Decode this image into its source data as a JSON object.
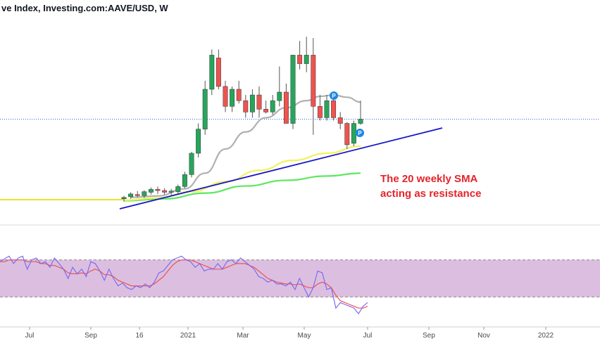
{
  "header": {
    "title": "ve Index, Investing.com:AAVE/USD, W"
  },
  "annotation": {
    "line1": "The 20 weekly SMA",
    "line2": "acting as resistance"
  },
  "colors": {
    "up": "#26a65b",
    "down": "#ef5350",
    "trendline": "#1515c8",
    "sma20": "#b0b0b0",
    "sma50": "#f2f25a",
    "sma100": "#5ce85c",
    "price_line": "#2962ff",
    "rsi": "#7b6cf0",
    "rsi_ma": "#ef5350",
    "rsi_band": "#dcbfe0",
    "annotation": "#e5232a",
    "badge": "#1e88e5"
  },
  "badges": [
    {
      "label": "P"
    },
    {
      "label": "P"
    }
  ],
  "chart_data": [
    {
      "type": "candlestick",
      "title": "ve Index, Investing.com:AAVE/USD, W",
      "x_ticks": [
        "Jul",
        "Sep",
        "16",
        "2021",
        "Mar",
        "May",
        "Jul",
        "Sep",
        "Nov",
        "2022"
      ],
      "candles_start_bar": 0,
      "candles": [
        {
          "o": 55,
          "h": 65,
          "l": 45,
          "c": 60
        },
        {
          "o": 62,
          "h": 78,
          "l": 55,
          "c": 72
        },
        {
          "o": 70,
          "h": 82,
          "l": 60,
          "c": 66
        },
        {
          "o": 66,
          "h": 85,
          "l": 58,
          "c": 80
        },
        {
          "o": 78,
          "h": 95,
          "l": 70,
          "c": 88
        },
        {
          "o": 88,
          "h": 98,
          "l": 72,
          "c": 84
        },
        {
          "o": 84,
          "h": 92,
          "l": 70,
          "c": 78
        },
        {
          "o": 78,
          "h": 90,
          "l": 68,
          "c": 82
        },
        {
          "o": 80,
          "h": 105,
          "l": 72,
          "c": 98
        },
        {
          "o": 98,
          "h": 150,
          "l": 92,
          "c": 140
        },
        {
          "o": 140,
          "h": 220,
          "l": 130,
          "c": 215
        },
        {
          "o": 215,
          "h": 320,
          "l": 200,
          "c": 300
        },
        {
          "o": 300,
          "h": 470,
          "l": 280,
          "c": 440
        },
        {
          "o": 440,
          "h": 580,
          "l": 420,
          "c": 560
        },
        {
          "o": 550,
          "h": 580,
          "l": 440,
          "c": 450
        },
        {
          "o": 450,
          "h": 470,
          "l": 360,
          "c": 380
        },
        {
          "o": 380,
          "h": 450,
          "l": 360,
          "c": 440
        },
        {
          "o": 440,
          "h": 470,
          "l": 390,
          "c": 400
        },
        {
          "o": 400,
          "h": 420,
          "l": 340,
          "c": 360
        },
        {
          "o": 360,
          "h": 440,
          "l": 340,
          "c": 420
        },
        {
          "o": 420,
          "h": 450,
          "l": 340,
          "c": 370
        },
        {
          "o": 370,
          "h": 400,
          "l": 355,
          "c": 360
        },
        {
          "o": 360,
          "h": 420,
          "l": 350,
          "c": 400
        },
        {
          "o": 400,
          "h": 520,
          "l": 380,
          "c": 430
        },
        {
          "o": 430,
          "h": 460,
          "l": 320,
          "c": 320
        },
        {
          "o": 320,
          "h": 560,
          "l": 300,
          "c": 560
        },
        {
          "o": 560,
          "h": 610,
          "l": 510,
          "c": 530
        },
        {
          "o": 530,
          "h": 625,
          "l": 500,
          "c": 560
        },
        {
          "o": 560,
          "h": 620,
          "l": 280,
          "c": 380
        },
        {
          "o": 380,
          "h": 420,
          "l": 330,
          "c": 340
        },
        {
          "o": 340,
          "h": 420,
          "l": 330,
          "c": 400
        },
        {
          "o": 400,
          "h": 420,
          "l": 330,
          "c": 340
        },
        {
          "o": 340,
          "h": 360,
          "l": 300,
          "c": 320
        },
        {
          "o": 320,
          "h": 325,
          "l": 230,
          "c": 245
        },
        {
          "o": 250,
          "h": 330,
          "l": 240,
          "c": 320
        },
        {
          "o": 320,
          "h": 400,
          "l": 315,
          "c": 335
        }
      ],
      "sma20": [
        [
          1,
          60
        ],
        [
          5,
          65
        ],
        [
          9,
          90
        ],
        [
          12,
          145
        ],
        [
          15,
          230
        ],
        [
          18,
          290
        ],
        [
          21,
          340
        ],
        [
          24,
          375
        ],
        [
          27,
          400
        ],
        [
          29,
          415
        ],
        [
          31,
          420
        ],
        [
          33,
          412
        ],
        [
          35,
          395
        ]
      ],
      "sma50": [
        [
          0,
          50
        ],
        [
          5,
          58
        ],
        [
          10,
          80
        ],
        [
          15,
          115
        ],
        [
          20,
          155
        ],
        [
          25,
          190
        ],
        [
          30,
          215
        ],
        [
          35,
          240
        ]
      ],
      "sma100": [
        [
          0,
          48
        ],
        [
          6,
          55
        ],
        [
          12,
          75
        ],
        [
          18,
          100
        ],
        [
          24,
          120
        ],
        [
          30,
          135
        ],
        [
          35,
          145
        ]
      ],
      "flat_ma": [
        [
          -20,
          52
        ],
        [
          0,
          52
        ]
      ],
      "trendline": [
        [
          0,
          60
        ],
        [
          45,
          410
        ]
      ],
      "current_price": 335,
      "y_range": [
        0,
        650
      ]
    },
    {
      "type": "line",
      "title": "RSI",
      "band": [
        30,
        70
      ],
      "y_range": [
        0,
        100
      ],
      "rsi": [
        68,
        71,
        74,
        66,
        72,
        74,
        60,
        70,
        72,
        66,
        68,
        62,
        72,
        66,
        60,
        50,
        62,
        55,
        60,
        52,
        68,
        66,
        58,
        48,
        60,
        50,
        42,
        45,
        40,
        38,
        42,
        40,
        44,
        40,
        46,
        56,
        58,
        64,
        70,
        72,
        74,
        70,
        68,
        62,
        66,
        58,
        60,
        60,
        66,
        60,
        68,
        70,
        66,
        72,
        68,
        64,
        60,
        52,
        50,
        46,
        48,
        44,
        44,
        42,
        46,
        38,
        50,
        40,
        30,
        40,
        58,
        56,
        38,
        40,
        18,
        24,
        22,
        20,
        18,
        12,
        20,
        24
      ],
      "rsi_ma": [
        68,
        68,
        70,
        70,
        70,
        70,
        68,
        68,
        68,
        66,
        66,
        64,
        64,
        62,
        60,
        56,
        55,
        55,
        56,
        55,
        58,
        60,
        58,
        54,
        54,
        52,
        48,
        46,
        44,
        42,
        42,
        42,
        42,
        42,
        44,
        48,
        52,
        58,
        64,
        68,
        70,
        70,
        70,
        68,
        66,
        64,
        62,
        60,
        60,
        60,
        62,
        64,
        66,
        66,
        66,
        64,
        62,
        58,
        54,
        50,
        48,
        46,
        45,
        44,
        44,
        43,
        44,
        42,
        40,
        40,
        44,
        46,
        44,
        40,
        32,
        26,
        24,
        22,
        20,
        18,
        18,
        20
      ]
    }
  ]
}
